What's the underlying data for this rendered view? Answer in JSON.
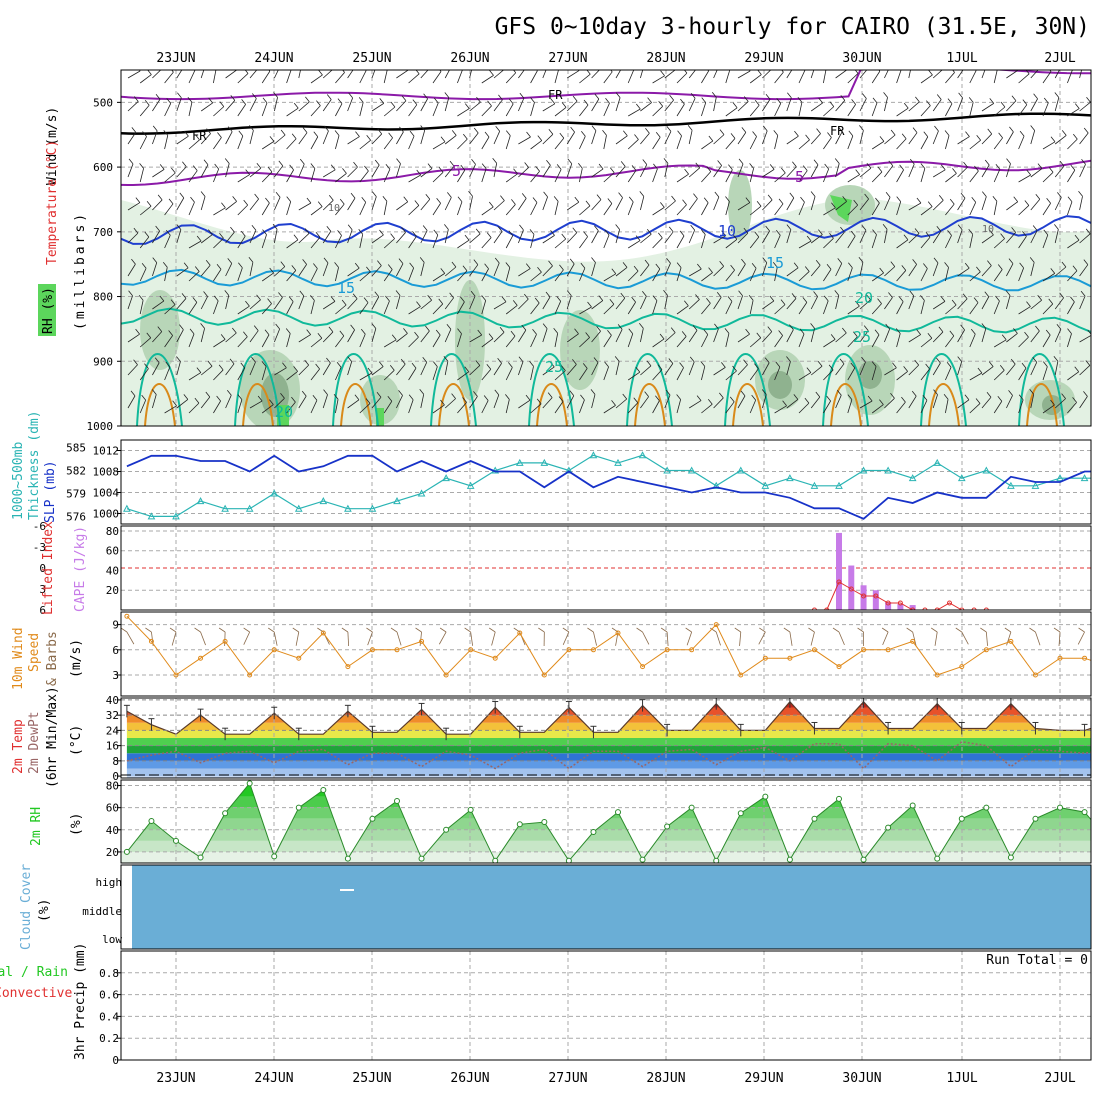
{
  "title": "GFS 0~10day 3-hourly for CAIRO (31.5E, 30N)",
  "dates": [
    "23JUN",
    "24JUN",
    "25JUN",
    "26JUN",
    "27JUN",
    "28JUN",
    "29JUN",
    "30JUN",
    "1JUL",
    "2JUL"
  ],
  "colors": {
    "rh_light": "#e3f1e3",
    "rh_mid": "#b8d6b8",
    "rh_dark": "#8fb28f",
    "rh_sat": "#5cd65c",
    "temp_purple": "#8b1aa8",
    "temp_blue": "#1f3fcf",
    "temp_lightblue": "#1a9bd6",
    "temp_teal": "#10b99a",
    "temp_orange": "#d98a1a",
    "slp": "#1732c8",
    "thickness": "#2ab4b4",
    "cape": "#c77be8",
    "lifted": "#e03030",
    "wind": "#e08a1a",
    "barb": "#8a6a4a",
    "rh2m": "#22c822",
    "cloud": "#6aaed6"
  },
  "panels": {
    "upper": {
      "label_wind": "Wind (m/s)",
      "label_temp": "Temperature (°C)",
      "label_rh": "RH (%)",
      "label_unit": "(millibars)",
      "pressure_ticks": [
        "500",
        "600",
        "700",
        "800",
        "900",
        "1000"
      ],
      "contour_labels": {
        "fr": "FR",
        "t5": "5",
        "t10": "10",
        "t15": "15",
        "t20": "20",
        "t25": "25",
        "rh10": "10"
      }
    },
    "slp": {
      "label_thick": "1000~500mb",
      "label_thick2": "Thickness (dm)",
      "label_slp": "SLP (mb)",
      "thick_ticks": [
        "585",
        "582",
        "579",
        "576"
      ],
      "slp_ticks": [
        "1012",
        "1008",
        "1004",
        "1000"
      ]
    },
    "cape": {
      "label_li": "Lifted Index",
      "label_cape": "CAPE (J/kg)",
      "li_ticks": [
        "-6",
        "-3",
        "0",
        "3",
        "6"
      ],
      "cape_ticks": [
        "80",
        "60",
        "40",
        "20"
      ]
    },
    "wind10": {
      "label1": "10m Wind",
      "label2": "Speed",
      "label3": "& Barbs",
      "label4": "(m/s)",
      "ticks": [
        "9",
        "6",
        "3"
      ]
    },
    "temp2m": {
      "label1": "2m Temp",
      "label2": "2m DewPt",
      "label3": "(6hr Min/Max)",
      "label4": "(°C)",
      "ticks": [
        "40",
        "32",
        "24",
        "16",
        "8",
        "0"
      ]
    },
    "rh2m": {
      "label1": "2m RH",
      "label2": "(%)",
      "ticks": [
        "80",
        "60",
        "40",
        "20"
      ]
    },
    "cloud": {
      "label1": "Cloud Cover",
      "label2": "(%)",
      "levels": [
        "high",
        "middle",
        "low"
      ]
    },
    "precip": {
      "label1": "Total / Rain",
      "label2": "Convective",
      "label3": "3hr Precip (mm)",
      "ticks": [
        "0.8",
        "0.6",
        "0.4",
        "0.2",
        "0"
      ],
      "run_total": "Run Total = 0"
    }
  },
  "chart_data": [
    {
      "type": "line",
      "name": "SLP",
      "ylabel": "SLP (mb)",
      "ylim": [
        998,
        1014
      ],
      "x_hours": [
        0,
        6,
        12,
        18,
        24,
        30,
        36,
        42,
        48,
        54,
        60,
        66,
        72,
        78,
        84,
        90,
        96,
        102,
        108,
        114,
        120,
        126,
        132,
        138,
        144,
        150,
        156,
        162,
        168,
        174,
        180,
        186,
        192,
        198,
        204,
        210,
        216,
        222,
        228,
        234,
        240
      ],
      "values": [
        1009,
        1011,
        1011,
        1010,
        1010,
        1008,
        1011,
        1008,
        1009,
        1011,
        1011,
        1008,
        1010,
        1008,
        1010,
        1008,
        1008,
        1005,
        1008,
        1005,
        1007,
        1006,
        1005,
        1004,
        1005,
        1004,
        1004,
        1003,
        1001,
        1001,
        999,
        1003,
        1002,
        1004,
        1003,
        1003,
        1007,
        1006,
        1006,
        1008,
        1008
      ],
      "series_name": "SLP (mb)"
    },
    {
      "type": "line",
      "name": "Thickness",
      "ylabel": "1000~500mb Thickness (dm)",
      "ylim": [
        575,
        586
      ],
      "x_hours": [
        0,
        6,
        12,
        18,
        24,
        30,
        36,
        42,
        48,
        54,
        60,
        66,
        72,
        78,
        84,
        90,
        96,
        102,
        108,
        114,
        120,
        126,
        132,
        138,
        144,
        150,
        156,
        162,
        168,
        174,
        180,
        186,
        192,
        198,
        204,
        210,
        216,
        222,
        228,
        234,
        240
      ],
      "values": [
        577,
        576,
        576,
        578,
        577,
        577,
        579,
        577,
        578,
        577,
        577,
        578,
        579,
        581,
        580,
        582,
        583,
        583,
        582,
        584,
        583,
        584,
        582,
        582,
        580,
        582,
        580,
        581,
        580,
        580,
        582,
        582,
        581,
        583,
        581,
        582,
        580,
        580,
        581,
        581,
        581
      ]
    },
    {
      "type": "bar",
      "name": "CAPE",
      "ylabel": "CAPE (J/kg)",
      "ylim": [
        0,
        85
      ],
      "x_hours": [
        174,
        177,
        180,
        183,
        186,
        189,
        192
      ],
      "values": [
        78,
        45,
        25,
        20,
        8,
        6,
        5
      ]
    },
    {
      "type": "line",
      "name": "Lifted Index",
      "ylabel": "Lifted Index",
      "ylim": [
        6,
        -6
      ],
      "x_hours": [
        168,
        171,
        174,
        177,
        180,
        183,
        186,
        189,
        192,
        195,
        198,
        201,
        204,
        207,
        210
      ],
      "values": [
        6,
        6,
        2,
        3,
        4,
        4,
        5,
        5,
        6,
        6,
        6,
        5,
        6,
        6,
        6
      ]
    },
    {
      "type": "line",
      "name": "10m Wind Speed",
      "ylabel": "(m/s)",
      "ylim": [
        0.5,
        10.5
      ],
      "x_hours": [
        0,
        6,
        12,
        18,
        24,
        30,
        36,
        42,
        48,
        54,
        60,
        66,
        72,
        78,
        84,
        90,
        96,
        102,
        108,
        114,
        120,
        126,
        132,
        138,
        144,
        150,
        156,
        162,
        168,
        174,
        180,
        186,
        192,
        198,
        204,
        210,
        216,
        222,
        228,
        234,
        240
      ],
      "values": [
        10,
        7,
        3,
        5,
        7,
        3,
        6,
        5,
        8,
        4,
        6,
        6,
        7,
        3,
        6,
        5,
        8,
        3,
        6,
        6,
        8,
        4,
        6,
        6,
        9,
        3,
        5,
        5,
        6,
        4,
        6,
        6,
        7,
        3,
        4,
        6,
        7,
        3,
        5,
        5,
        4
      ]
    },
    {
      "type": "area",
      "name": "2m Temp / DewPt",
      "ylabel": "(°C)",
      "ylim": [
        -1,
        41
      ],
      "x_hours": [
        0,
        6,
        12,
        18,
        24,
        30,
        36,
        42,
        48,
        54,
        60,
        66,
        72,
        78,
        84,
        90,
        96,
        102,
        108,
        114,
        120,
        126,
        132,
        138,
        144,
        150,
        156,
        162,
        168,
        174,
        180,
        186,
        192,
        198,
        204,
        210,
        216,
        222,
        228,
        234,
        240
      ],
      "temperature": [
        34,
        27,
        22,
        32,
        22,
        22,
        33,
        22,
        22,
        34,
        23,
        23,
        35,
        22,
        22,
        36,
        23,
        23,
        36,
        23,
        23,
        37,
        24,
        24,
        38,
        24,
        24,
        39,
        25,
        25,
        39,
        25,
        25,
        38,
        25,
        25,
        38,
        25,
        24,
        24,
        28
      ],
      "dewpoint": [
        8,
        11,
        13,
        7,
        12,
        13,
        7,
        13,
        14,
        6,
        12,
        12,
        5,
        13,
        11,
        4,
        12,
        14,
        4,
        13,
        13,
        5,
        13,
        14,
        6,
        13,
        15,
        8,
        17,
        17,
        4,
        17,
        16,
        8,
        18,
        16,
        5,
        14,
        13,
        12,
        14
      ]
    },
    {
      "type": "area",
      "name": "2m RH",
      "ylabel": "(%)",
      "ylim": [
        10,
        85
      ],
      "x_hours": [
        0,
        6,
        12,
        18,
        24,
        30,
        36,
        42,
        48,
        54,
        60,
        66,
        72,
        78,
        84,
        90,
        96,
        102,
        108,
        114,
        120,
        126,
        132,
        138,
        144,
        150,
        156,
        162,
        168,
        174,
        180,
        186,
        192,
        198,
        204,
        210,
        216,
        222,
        228,
        234,
        240
      ],
      "values": [
        20,
        48,
        30,
        15,
        55,
        82,
        16,
        60,
        76,
        14,
        50,
        66,
        14,
        40,
        58,
        12,
        45,
        47,
        12,
        38,
        56,
        13,
        43,
        60,
        12,
        55,
        70,
        13,
        50,
        68,
        13,
        42,
        62,
        14,
        50,
        60,
        15,
        50,
        60,
        56,
        30
      ]
    },
    {
      "type": "table",
      "name": "Cloud Cover",
      "levels": [
        "high",
        "middle",
        "low"
      ],
      "note": "uniform fill, no cloud"
    },
    {
      "type": "bar",
      "name": "3hr Precip",
      "ylabel": "3hr Precip (mm)",
      "ylim": [
        0,
        1
      ],
      "values": []
    }
  ]
}
